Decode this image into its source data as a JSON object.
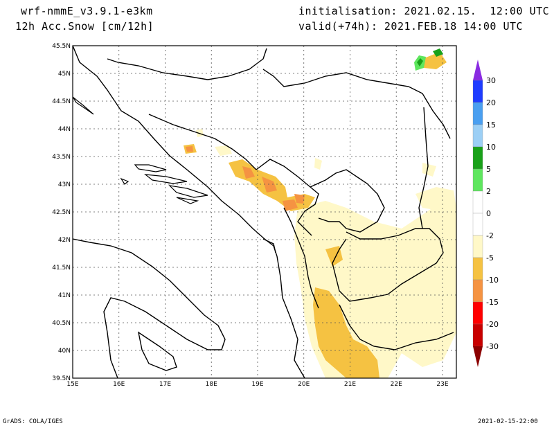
{
  "header": {
    "model": "wrf-nmmE_v3.9.1-e3km",
    "field": "12h Acc.Snow [cm/12h]",
    "init": "initialisation: 2021.02.15.  12:00 UTC",
    "valid": "valid(+74h): 2021.FEB.18 14:00 UTC"
  },
  "axes": {
    "lon_ticks": [
      "15E",
      "16E",
      "17E",
      "18E",
      "19E",
      "20E",
      "21E",
      "22E",
      "23E"
    ],
    "lat_ticks": [
      "45.5N",
      "45N",
      "44.5N",
      "44N",
      "43.5N",
      "43N",
      "42.5N",
      "42N",
      "41.5N",
      "41N",
      "40.5N",
      "40N",
      "39.5N"
    ],
    "lon_range": [
      15,
      23.3
    ],
    "lat_range": [
      39.5,
      45.5
    ]
  },
  "colorbar": {
    "labels": [
      "30",
      "20",
      "15",
      "10",
      "5",
      "2",
      "0",
      "-2",
      "-5",
      "-10",
      "-15",
      "-20",
      "-30"
    ],
    "colors": [
      "#8a2be2",
      "#1e3cff",
      "#4a9ff0",
      "#9ccff5",
      "#19a119",
      "#5ee65e",
      "#ffffff",
      "#ffffff",
      "#fff8c8",
      "#f5c242",
      "#f59342",
      "#ff0000",
      "#c80000",
      "#8b0000"
    ]
  },
  "footer": {
    "left": "GrADS: COLA/IGES",
    "right": "2021-02-15-22:00"
  }
}
